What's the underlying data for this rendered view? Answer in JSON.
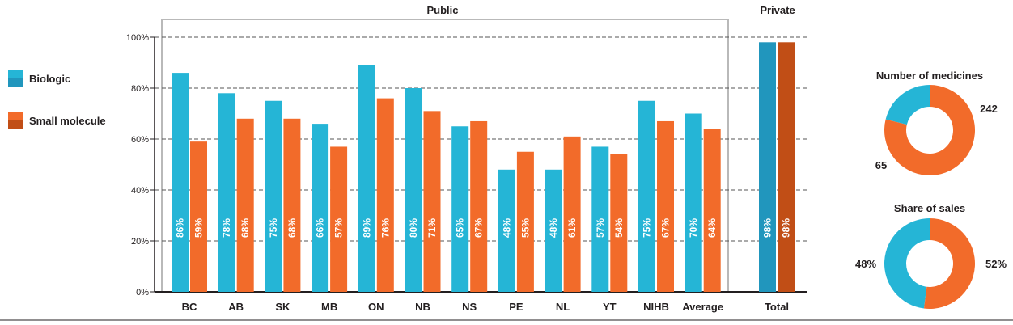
{
  "colors": {
    "biologic": "#25b5d6",
    "biologic_dark": "#2196bd",
    "small": "#f26b2a",
    "small_dark": "#c14e16",
    "grid": "#555555",
    "frame": "#b9b9b9"
  },
  "legend": {
    "biologic": "Biologic",
    "small": "Small molecule"
  },
  "chart_data": [
    {
      "type": "bar",
      "title": "Public",
      "categories": [
        "BC",
        "AB",
        "SK",
        "MB",
        "ON",
        "NB",
        "NS",
        "PE",
        "NL",
        "YT",
        "NIHB",
        "Average"
      ],
      "series": [
        {
          "name": "Biologic",
          "values": [
            86,
            78,
            75,
            66,
            89,
            80,
            65,
            48,
            48,
            57,
            75,
            70
          ],
          "labels": [
            "86%",
            "78%",
            "75%",
            "66%",
            "89%",
            "80%",
            "65%",
            "48%",
            "48%",
            "57%",
            "75%",
            "70%"
          ]
        },
        {
          "name": "Small molecule",
          "values": [
            59,
            68,
            68,
            57,
            76,
            71,
            67,
            55,
            61,
            54,
            67,
            64
          ],
          "labels": [
            "59%",
            "68%",
            "68%",
            "57%",
            "76%",
            "71%",
            "67%",
            "55%",
            "61%",
            "54%",
            "67%",
            "64%"
          ]
        }
      ],
      "yticks": [
        "0%",
        "20%",
        "40%",
        "60%",
        "80%",
        "100%"
      ],
      "ylim": [
        0,
        100
      ],
      "grid": true
    },
    {
      "type": "bar",
      "title": "Private",
      "categories": [
        "Total"
      ],
      "series": [
        {
          "name": "Biologic",
          "values": [
            98
          ],
          "labels": [
            "98%"
          ]
        },
        {
          "name": "Small molecule",
          "values": [
            98
          ],
          "labels": [
            "98%"
          ]
        }
      ],
      "ylim": [
        0,
        100
      ]
    },
    {
      "type": "pie",
      "title": "Number of medicines",
      "slices": [
        {
          "name": "Biologic",
          "value": 65,
          "label": "65"
        },
        {
          "name": "Small molecule",
          "value": 242,
          "label": "242"
        }
      ]
    },
    {
      "type": "pie",
      "title": "Share of sales",
      "slices": [
        {
          "name": "Biologic",
          "value": 48,
          "label": "48%"
        },
        {
          "name": "Small molecule",
          "value": 52,
          "label": "52%"
        }
      ]
    }
  ]
}
